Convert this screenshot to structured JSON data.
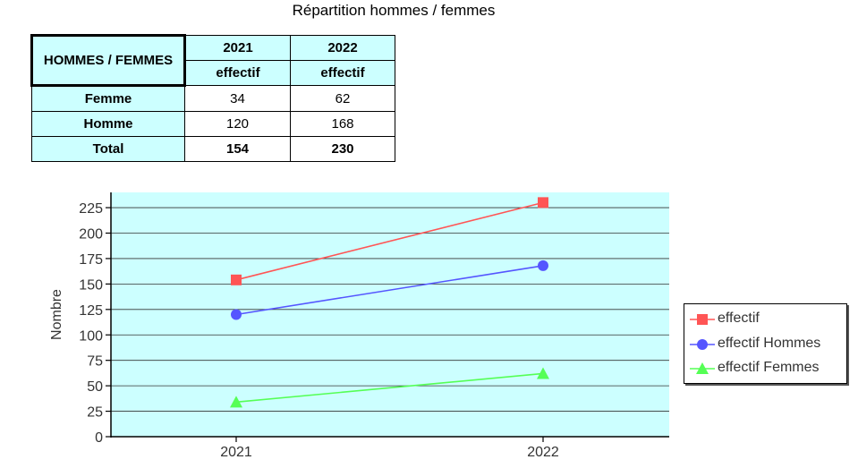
{
  "title": "Répartition hommes / femmes",
  "table": {
    "corner_header": "HOMMES / FEMMES",
    "years": [
      "2021",
      "2022"
    ],
    "sub_headers": [
      "effectif",
      "effectif"
    ],
    "rows": [
      {
        "label": "Femme",
        "values": [
          "34",
          "62"
        ],
        "bold": false
      },
      {
        "label": "Homme",
        "values": [
          "120",
          "168"
        ],
        "bold": false
      },
      {
        "label": "Total",
        "values": [
          "154",
          "230"
        ],
        "bold": true
      }
    ]
  },
  "chart_data": {
    "type": "line",
    "categories": [
      "2021",
      "2022"
    ],
    "ylabel": "Nombre",
    "xlabel": "",
    "ylim": [
      0,
      240
    ],
    "yticks": [
      0,
      25,
      50,
      75,
      100,
      125,
      150,
      175,
      200,
      225
    ],
    "grid": true,
    "legend_position": "right",
    "background": "#ccffff",
    "series": [
      {
        "name": "effectif",
        "values": [
          154,
          230
        ],
        "color": "#ff5555",
        "marker": "square"
      },
      {
        "name": "effectif Hommes",
        "values": [
          120,
          168
        ],
        "color": "#5555ff",
        "marker": "circle"
      },
      {
        "name": "effectif Femmes",
        "values": [
          34,
          62
        ],
        "color": "#55ff55",
        "marker": "triangle"
      }
    ]
  }
}
